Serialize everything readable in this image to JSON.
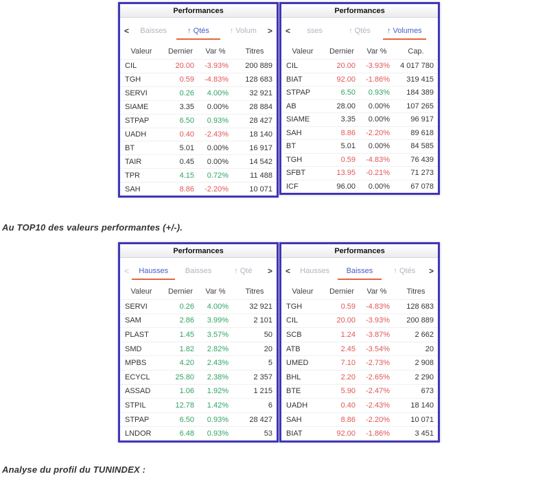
{
  "captions": {
    "top10": "Au TOP10 des valeurs performantes (+/-).",
    "analyse": "Analyse du profil du TUNINDEX :"
  },
  "icons": {
    "chevron_left": "<",
    "chevron_right": ">"
  },
  "colors": {
    "frame": "#4136b4",
    "tab_active": "#4a5bc4",
    "tab_inactive": "#b4b4bc",
    "underline": "#e4653f",
    "up": "#2fa460",
    "down": "#e05555",
    "flat": "#333333",
    "text": "#333333"
  },
  "panels": [
    {
      "title": "Performances",
      "left_chevron_enabled": true,
      "right_chevron_visible": true,
      "tabs": [
        {
          "label": "Baisses",
          "active": false
        },
        {
          "label": "↑ Qtés",
          "active": true
        },
        {
          "label": "↑ Volum",
          "active": false
        }
      ],
      "columns": [
        "Valeur",
        "Dernier",
        "Var %",
        "Titres"
      ],
      "rows": [
        {
          "valeur": "CIL",
          "dernier": "20.00",
          "var_pct": "-3.93%",
          "volume": "200 889",
          "trend": "down"
        },
        {
          "valeur": "TGH",
          "dernier": "0.59",
          "var_pct": "-4.83%",
          "volume": "128 683",
          "trend": "down"
        },
        {
          "valeur": "SERVI",
          "dernier": "0.26",
          "var_pct": "4.00%",
          "volume": "32 921",
          "trend": "up"
        },
        {
          "valeur": "SIAME",
          "dernier": "3.35",
          "var_pct": "0.00%",
          "volume": "28 884",
          "trend": "flat"
        },
        {
          "valeur": "STPAP",
          "dernier": "6.50",
          "var_pct": "0.93%",
          "volume": "28 427",
          "trend": "up"
        },
        {
          "valeur": "UADH",
          "dernier": "0.40",
          "var_pct": "-2.43%",
          "volume": "18 140",
          "trend": "down"
        },
        {
          "valeur": "BT",
          "dernier": "5.01",
          "var_pct": "0.00%",
          "volume": "16 917",
          "trend": "flat"
        },
        {
          "valeur": "TAIR",
          "dernier": "0.45",
          "var_pct": "0.00%",
          "volume": "14 542",
          "trend": "flat"
        },
        {
          "valeur": "TPR",
          "dernier": "4.15",
          "var_pct": "0.72%",
          "volume": "11 488",
          "trend": "up"
        },
        {
          "valeur": "SAH",
          "dernier": "8.86",
          "var_pct": "-2.20%",
          "volume": "10 071",
          "trend": "down"
        }
      ]
    },
    {
      "title": "Performances",
      "left_chevron_enabled": true,
      "right_chevron_visible": false,
      "tabs": [
        {
          "label": "sses",
          "active": false
        },
        {
          "label": "↑ Qtés",
          "active": false
        },
        {
          "label": "↑ Volumes",
          "active": true
        }
      ],
      "columns": [
        "Valeur",
        "Dernier",
        "Var %",
        "Cap."
      ],
      "rows": [
        {
          "valeur": "CIL",
          "dernier": "20.00",
          "var_pct": "-3.93%",
          "volume": "4 017 780",
          "trend": "down"
        },
        {
          "valeur": "BIAT",
          "dernier": "92.00",
          "var_pct": "-1.86%",
          "volume": "319 415",
          "trend": "down"
        },
        {
          "valeur": "STPAP",
          "dernier": "6.50",
          "var_pct": "0.93%",
          "volume": "184 389",
          "trend": "up"
        },
        {
          "valeur": "AB",
          "dernier": "28.00",
          "var_pct": "0.00%",
          "volume": "107 265",
          "trend": "flat"
        },
        {
          "valeur": "SIAME",
          "dernier": "3.35",
          "var_pct": "0.00%",
          "volume": "96 917",
          "trend": "flat"
        },
        {
          "valeur": "SAH",
          "dernier": "8.86",
          "var_pct": "-2.20%",
          "volume": "89 618",
          "trend": "down"
        },
        {
          "valeur": "BT",
          "dernier": "5.01",
          "var_pct": "0.00%",
          "volume": "84 585",
          "trend": "flat"
        },
        {
          "valeur": "TGH",
          "dernier": "0.59",
          "var_pct": "-4.83%",
          "volume": "76 439",
          "trend": "down"
        },
        {
          "valeur": "SFBT",
          "dernier": "13.95",
          "var_pct": "-0.21%",
          "volume": "71 273",
          "trend": "down"
        },
        {
          "valeur": "ICF",
          "dernier": "96.00",
          "var_pct": "0.00%",
          "volume": "67 078",
          "trend": "flat"
        }
      ]
    },
    {
      "title": "Performances",
      "left_chevron_enabled": false,
      "right_chevron_visible": true,
      "tabs": [
        {
          "label": "Hausses",
          "active": true
        },
        {
          "label": "Baisses",
          "active": false
        },
        {
          "label": "↑ Qté",
          "active": false
        }
      ],
      "columns": [
        "Valeur",
        "Dernier",
        "Var %",
        "Titres"
      ],
      "rows": [
        {
          "valeur": "SERVI",
          "dernier": "0.26",
          "var_pct": "4.00%",
          "volume": "32 921",
          "trend": "up"
        },
        {
          "valeur": "SAM",
          "dernier": "2.86",
          "var_pct": "3.99%",
          "volume": "2 101",
          "trend": "up"
        },
        {
          "valeur": "PLAST",
          "dernier": "1.45",
          "var_pct": "3.57%",
          "volume": "50",
          "trend": "up"
        },
        {
          "valeur": "SMD",
          "dernier": "1.82",
          "var_pct": "2.82%",
          "volume": "20",
          "trend": "up"
        },
        {
          "valeur": "MPBS",
          "dernier": "4.20",
          "var_pct": "2.43%",
          "volume": "5",
          "trend": "up"
        },
        {
          "valeur": "ECYCL",
          "dernier": "25.80",
          "var_pct": "2.38%",
          "volume": "2 357",
          "trend": "up"
        },
        {
          "valeur": "ASSAD",
          "dernier": "1.06",
          "var_pct": "1.92%",
          "volume": "1 215",
          "trend": "up"
        },
        {
          "valeur": "STPIL",
          "dernier": "12.78",
          "var_pct": "1.42%",
          "volume": "6",
          "trend": "up"
        },
        {
          "valeur": "STPAP",
          "dernier": "6.50",
          "var_pct": "0.93%",
          "volume": "28 427",
          "trend": "up"
        },
        {
          "valeur": "LNDOR",
          "dernier": "6.48",
          "var_pct": "0.93%",
          "volume": "53",
          "trend": "up"
        }
      ]
    },
    {
      "title": "Performances",
      "left_chevron_enabled": true,
      "right_chevron_visible": true,
      "tabs": [
        {
          "label": "Hausses",
          "active": false
        },
        {
          "label": "Baisses",
          "active": true
        },
        {
          "label": "↑ Qtés",
          "active": false
        }
      ],
      "columns": [
        "Valeur",
        "Dernier",
        "Var %",
        "Titres"
      ],
      "rows": [
        {
          "valeur": "TGH",
          "dernier": "0.59",
          "var_pct": "-4.83%",
          "volume": "128 683",
          "trend": "down"
        },
        {
          "valeur": "CIL",
          "dernier": "20.00",
          "var_pct": "-3.93%",
          "volume": "200 889",
          "trend": "down"
        },
        {
          "valeur": "SCB",
          "dernier": "1.24",
          "var_pct": "-3.87%",
          "volume": "2 662",
          "trend": "down"
        },
        {
          "valeur": "ATB",
          "dernier": "2.45",
          "var_pct": "-3.54%",
          "volume": "20",
          "trend": "down"
        },
        {
          "valeur": "UMED",
          "dernier": "7.10",
          "var_pct": "-2.73%",
          "volume": "2 908",
          "trend": "down"
        },
        {
          "valeur": "BHL",
          "dernier": "2.20",
          "var_pct": "-2.65%",
          "volume": "2 290",
          "trend": "down"
        },
        {
          "valeur": "BTE",
          "dernier": "5.90",
          "var_pct": "-2.47%",
          "volume": "673",
          "trend": "down"
        },
        {
          "valeur": "UADH",
          "dernier": "0.40",
          "var_pct": "-2.43%",
          "volume": "18 140",
          "trend": "down"
        },
        {
          "valeur": "SAH",
          "dernier": "8.86",
          "var_pct": "-2.20%",
          "volume": "10 071",
          "trend": "down"
        },
        {
          "valeur": "BIAT",
          "dernier": "92.00",
          "var_pct": "-1.86%",
          "volume": "3 451",
          "trend": "down"
        }
      ]
    }
  ]
}
